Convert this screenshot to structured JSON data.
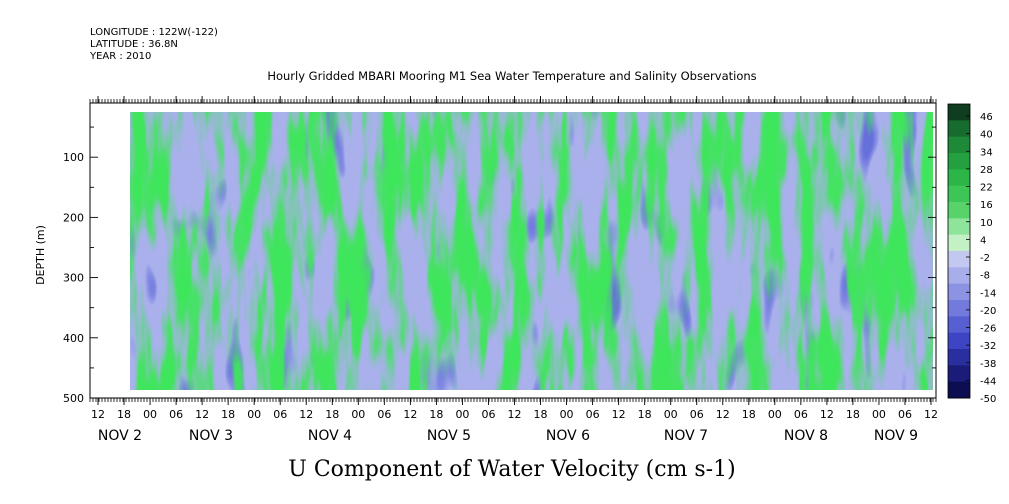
{
  "chart_data": {
    "type": "heatmap",
    "title": "Hourly Gridded MBARI Mooring M1 Sea Water Temperature and Salinity Observations",
    "header": [
      "LONGITUDE : 122W(-122)",
      "LATITUDE : 36.8N",
      "YEAR : 2010"
    ],
    "xlabel": "U Component of Water Velocity (cm s-1)",
    "ylabel": "DEPTH (m)",
    "y_ticks": [
      100,
      200,
      300,
      400,
      500
    ],
    "ylim": [
      500,
      10
    ],
    "data_depth_range": [
      20,
      490
    ],
    "x_hour_ticks": [
      "12",
      "18",
      "00",
      "06",
      "12",
      "18",
      "00",
      "06",
      "12",
      "18",
      "00",
      "06",
      "12",
      "18",
      "00",
      "06",
      "12",
      "18",
      "00",
      "06",
      "12",
      "18",
      "00",
      "06",
      "12",
      "18",
      "00",
      "06",
      "12",
      "18",
      "00",
      "06",
      "12"
    ],
    "x_day_labels": [
      {
        "month": "NOV",
        "day": "2"
      },
      {
        "month": "NOV",
        "day": "3"
      },
      {
        "month": "NOV",
        "day": "4"
      },
      {
        "month": "NOV",
        "day": "5"
      },
      {
        "month": "NOV",
        "day": "6"
      },
      {
        "month": "NOV",
        "day": "7"
      },
      {
        "month": "NOV",
        "day": "8"
      },
      {
        "month": "NOV",
        "day": "9"
      }
    ],
    "colorbar_labels": [
      "46",
      "40",
      "34",
      "28",
      "22",
      "16",
      "10",
      "4",
      "-2",
      "-8",
      "-14",
      "-20",
      "-26",
      "-32",
      "-38",
      "-44",
      "-50"
    ],
    "colorbar_colors": [
      "#0f3d1f",
      "#176b2e",
      "#1e8a38",
      "#24a040",
      "#2cb648",
      "#3cc656",
      "#58d36a",
      "#8ee49a",
      "#c4f0c6",
      "#c2c8ef",
      "#a7aee9",
      "#8c93e2",
      "#727adb",
      "#5760d3",
      "#3d45c4",
      "#2a2fa0",
      "#1a1c78",
      "#0d0d52"
    ]
  }
}
